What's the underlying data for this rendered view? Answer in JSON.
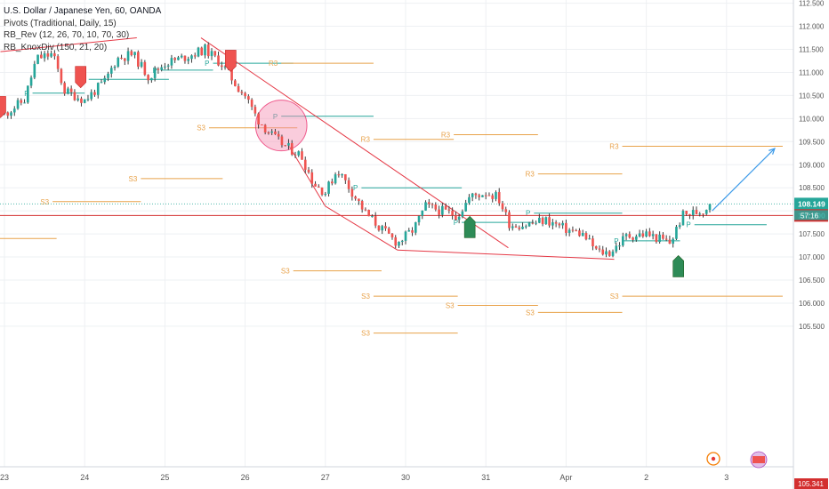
{
  "legend": {
    "title": "U.S. Dollar / Japanese Yen, 60, OANDA",
    "indicators": [
      "Pivots (Traditional, Daily, 15)",
      "RB_Rev (12, 26, 70, 10, 70, 30)",
      "RB_KnoxDiv (150, 21, 20)"
    ]
  },
  "colors": {
    "up": "#26a69a",
    "down": "#ef5350",
    "wick": "#3a3a3a",
    "pivot_p": "#26a69a",
    "pivot_rs": "#e8a24a",
    "trend": "#e53946",
    "arrow": "#3d9be9",
    "current_price": "#26a69a",
    "hline": "#d32f2f",
    "grid": "#eef0f3"
  },
  "chart_data": {
    "type": "candlestick",
    "y_axis": {
      "min": 105.3,
      "max": 112.5,
      "side": "right",
      "ticks": [
        "112.500",
        "112.000",
        "111.500",
        "111.000",
        "110.500",
        "110.000",
        "109.500",
        "109.000",
        "108.500",
        "108.000",
        "107.500",
        "107.000",
        "106.500",
        "106.000",
        "105.500"
      ],
      "tick_values": [
        112.5,
        112.0,
        111.5,
        111.0,
        110.5,
        110.0,
        109.5,
        109.0,
        108.5,
        108.0,
        107.5,
        107.0,
        106.5,
        106.0,
        105.5
      ],
      "price_labels": [
        {
          "value": 108.149,
          "text": "108.149",
          "kind": "current"
        },
        {
          "value": 107.9,
          "text": "107.900",
          "kind": "line"
        }
      ],
      "countdown": "57:16",
      "bottom_partial": "105.341"
    },
    "x_axis": {
      "labels": [
        "23",
        "24",
        "25",
        "26",
        "27",
        "30",
        "31",
        "Apr",
        "2",
        "3"
      ],
      "label_positions": [
        0.0,
        1.0,
        2.0,
        3.0,
        4.0,
        5.0,
        6.0,
        7.0,
        8.0,
        9.0
      ]
    },
    "candle_key_points": [
      [
        0,
        110.1
      ],
      [
        0.25,
        110.4
      ],
      [
        0.4,
        111.3
      ],
      [
        0.6,
        111.4
      ],
      [
        0.75,
        110.6
      ],
      [
        1.0,
        110.4
      ],
      [
        1.25,
        110.8
      ],
      [
        1.4,
        111.3
      ],
      [
        1.6,
        111.4
      ],
      [
        1.8,
        110.9
      ],
      [
        2.0,
        111.2
      ],
      [
        2.2,
        111.3
      ],
      [
        2.5,
        111.5
      ],
      [
        2.7,
        111.2
      ],
      [
        2.9,
        110.7
      ],
      [
        3.0,
        110.5
      ],
      [
        3.15,
        110.0
      ],
      [
        3.35,
        109.6
      ],
      [
        3.5,
        109.4
      ],
      [
        3.7,
        109.2
      ],
      [
        3.85,
        108.6
      ],
      [
        4.0,
        108.4
      ],
      [
        4.15,
        108.9
      ],
      [
        4.3,
        108.5
      ],
      [
        4.5,
        107.95
      ],
      [
        4.7,
        107.6
      ],
      [
        4.9,
        107.3
      ],
      [
        5.1,
        107.6
      ],
      [
        5.25,
        108.1
      ],
      [
        5.45,
        108.0
      ],
      [
        5.65,
        107.9
      ],
      [
        5.8,
        108.3
      ],
      [
        6.0,
        108.4
      ],
      [
        6.15,
        108.3
      ],
      [
        6.3,
        107.7
      ],
      [
        6.5,
        107.7
      ],
      [
        6.75,
        107.8
      ],
      [
        7.0,
        107.6
      ],
      [
        7.2,
        107.5
      ],
      [
        7.4,
        107.1
      ],
      [
        7.55,
        107.1
      ],
      [
        7.75,
        107.45
      ],
      [
        8.0,
        107.5
      ],
      [
        8.3,
        107.3
      ],
      [
        8.45,
        107.9
      ],
      [
        8.7,
        108.0
      ],
      [
        8.82,
        108.149
      ]
    ],
    "pivot_levels": [
      {
        "label": "P",
        "kind": "p",
        "x0": 0.35,
        "x1": 1.0,
        "y": 110.55
      },
      {
        "label": "P",
        "kind": "p",
        "x0": 1.05,
        "x1": 2.05,
        "y": 110.85
      },
      {
        "label": "P",
        "kind": "p",
        "x0": 1.95,
        "x1": 2.6,
        "y": 111.05
      },
      {
        "label": "P",
        "kind": "p",
        "x0": 2.6,
        "x1": 3.6,
        "y": 111.2
      },
      {
        "label": "P",
        "kind": "p",
        "x0": 3.45,
        "x1": 4.6,
        "y": 110.05
      },
      {
        "label": "P",
        "kind": "p",
        "x0": 4.45,
        "x1": 5.7,
        "y": 108.5
      },
      {
        "label": "P",
        "kind": "p",
        "x0": 5.7,
        "x1": 6.6,
        "y": 107.75
      },
      {
        "label": "P",
        "kind": "p",
        "x0": 6.6,
        "x1": 7.7,
        "y": 107.95
      },
      {
        "label": "P",
        "kind": "p",
        "x0": 7.7,
        "x1": 8.42,
        "y": 107.35
      },
      {
        "label": "P",
        "kind": "p",
        "x0": 8.6,
        "x1": 9.5,
        "y": 107.7
      },
      {
        "label": "R3",
        "kind": "rs",
        "x0": 3.45,
        "x1": 4.6,
        "y": 111.2
      },
      {
        "label": "R3",
        "kind": "rs",
        "x0": 4.6,
        "x1": 5.6,
        "y": 109.55
      },
      {
        "label": "R3",
        "kind": "rs",
        "x0": 5.6,
        "x1": 6.65,
        "y": 109.65
      },
      {
        "label": "R3",
        "kind": "rs",
        "x0": 6.65,
        "x1": 7.7,
        "y": 108.8
      },
      {
        "label": "R3",
        "kind": "rs",
        "x0": 7.7,
        "x1": 9.7,
        "y": 109.4
      },
      {
        "label": "S3",
        "kind": "rs",
        "x0": 1.7,
        "x1": 2.72,
        "y": 108.7
      },
      {
        "label": "S3",
        "kind": "rs",
        "x0": 0.6,
        "x1": 1.7,
        "y": 108.2
      },
      {
        "label": "S3",
        "kind": "rs",
        "x0": -0.1,
        "x1": 0.65,
        "y": 107.4
      },
      {
        "label": "S3",
        "kind": "rs",
        "x0": 2.55,
        "x1": 3.65,
        "y": 109.8
      },
      {
        "label": "S3",
        "kind": "rs",
        "x0": 3.6,
        "x1": 4.7,
        "y": 106.7
      },
      {
        "label": "S3",
        "kind": "rs",
        "x0": 4.6,
        "x1": 5.65,
        "y": 106.15
      },
      {
        "label": "S3",
        "kind": "rs",
        "x0": 5.65,
        "x1": 6.65,
        "y": 105.95
      },
      {
        "label": "S3",
        "kind": "rs",
        "x0": 6.65,
        "x1": 7.7,
        "y": 105.8
      },
      {
        "label": "S3",
        "kind": "rs",
        "x0": 4.6,
        "x1": 5.65,
        "y": 105.35
      },
      {
        "label": "S3",
        "kind": "rs",
        "x0": 7.7,
        "x1": 9.7,
        "y": 106.15
      }
    ],
    "trend_lines": [
      {
        "x0": -0.05,
        "y0": 111.45,
        "x1": 1.65,
        "y1": 111.75
      },
      {
        "x0": 2.45,
        "y0": 111.75,
        "x1": 6.28,
        "y1": 107.2
      },
      {
        "x0": 3.55,
        "y0": 109.4,
        "x1": 4.0,
        "y1": 108.1
      },
      {
        "x0": 4.0,
        "y0": 108.1,
        "x1": 4.9,
        "y1": 107.15
      },
      {
        "x0": 4.9,
        "y0": 107.15,
        "x1": 7.6,
        "y1": 106.95
      }
    ],
    "horizontal_lines": [
      {
        "y": 107.9,
        "style": "solid",
        "kind": "hline"
      },
      {
        "y": 108.149,
        "style": "dotted",
        "kind": "current"
      }
    ],
    "projection_arrow": {
      "x0": 8.82,
      "y0": 108.0,
      "x1": 9.6,
      "y1": 109.35
    },
    "highlight_circle": {
      "x": 3.45,
      "y": 109.85,
      "rx": 0.32,
      "ry": 0.55
    },
    "signals": [
      {
        "dir": "down",
        "x": -0.05,
        "y": 110.25
      },
      {
        "dir": "down",
        "x": 0.95,
        "y": 110.9
      },
      {
        "dir": "down",
        "x": 2.82,
        "y": 111.25
      },
      {
        "dir": "up",
        "x": 5.8,
        "y": 107.65
      },
      {
        "dir": "up",
        "x": 8.4,
        "y": 106.8
      }
    ]
  }
}
